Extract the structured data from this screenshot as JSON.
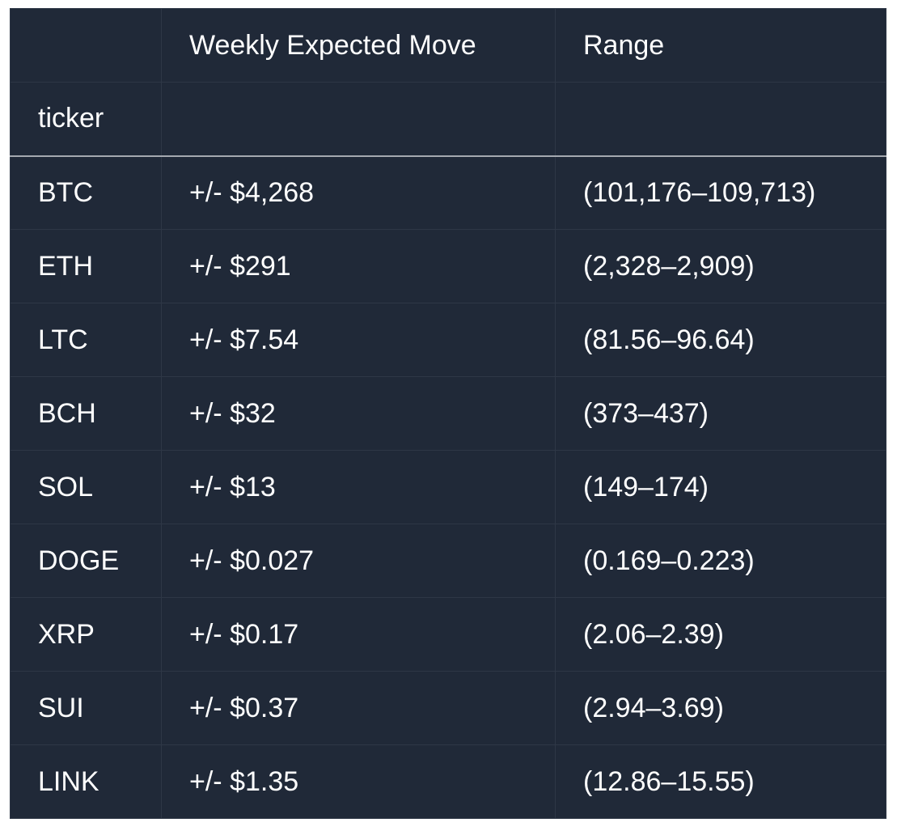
{
  "table": {
    "columns": [
      "",
      "Weekly Expected Move",
      "Range"
    ],
    "index_name": "ticker",
    "rows": [
      {
        "ticker": "BTC",
        "move": "+/- $4,268",
        "range": "(101,176–109,713)"
      },
      {
        "ticker": "ETH",
        "move": "+/- $291",
        "range": "(2,328–2,909)"
      },
      {
        "ticker": "LTC",
        "move": "+/- $7.54",
        "range": "(81.56–96.64)"
      },
      {
        "ticker": "BCH",
        "move": "+/- $32",
        "range": "(373–437)"
      },
      {
        "ticker": "SOL",
        "move": "+/- $13",
        "range": "(149–174)"
      },
      {
        "ticker": "DOGE",
        "move": "+/- $0.027",
        "range": "(0.169–0.223)"
      },
      {
        "ticker": "XRP",
        "move": "+/- $0.17",
        "range": "(2.06–2.39)"
      },
      {
        "ticker": "SUI",
        "move": "+/- $0.37",
        "range": "(2.94–3.69)"
      },
      {
        "ticker": "LINK",
        "move": "+/- $1.35",
        "range": "(12.86–15.55)"
      }
    ]
  },
  "colors": {
    "background": "#202938",
    "text": "#ffffff",
    "border": "#2e3746",
    "header_rule": "#a5a9b0"
  }
}
